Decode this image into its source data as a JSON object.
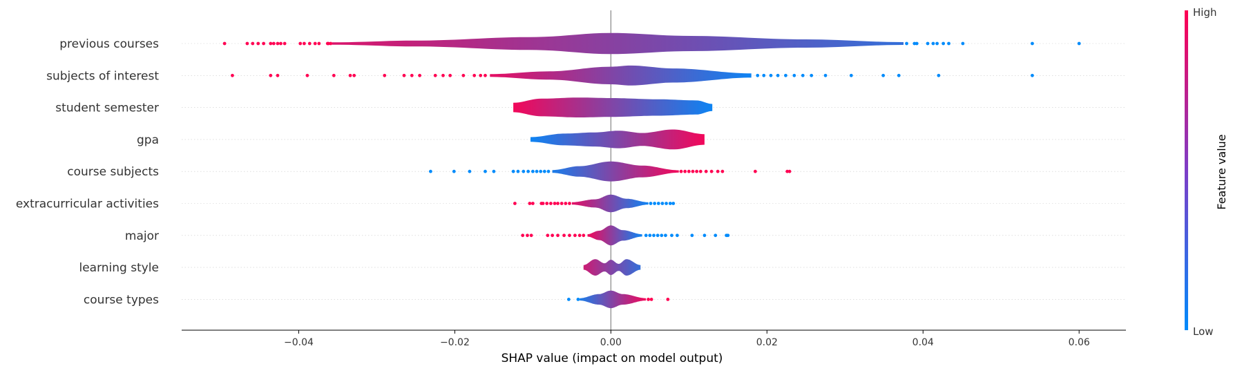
{
  "chart_data": {
    "type": "violin",
    "xlabel": "SHAP value (impact on model output)",
    "xlim": [
      -0.055,
      0.066
    ],
    "xticks": [
      -0.04,
      -0.02,
      0.0,
      0.02,
      0.04,
      0.06
    ],
    "xtick_labels": [
      "−0.04",
      "−0.02",
      "0.00",
      "0.02",
      "0.04",
      "0.06"
    ],
    "colorbar": {
      "label": "Feature value",
      "high_label": "High",
      "low_label": "Low",
      "low_color": "#008bfb",
      "high_color": "#ff0052"
    },
    "features": [
      {
        "name": "previous courses",
        "range": [
          -0.0357,
          0.0375
        ],
        "peak": 0.0,
        "color_low_side": 0.85,
        "color_high_side": 0.2,
        "thickness": [
          [
            -0.0357,
            0.1
          ],
          [
            -0.025,
            0.25
          ],
          [
            -0.01,
            0.55
          ],
          [
            0.0,
            0.9
          ],
          [
            0.01,
            0.65
          ],
          [
            0.025,
            0.35
          ],
          [
            0.0375,
            0.12
          ]
        ],
        "outliers_low": [
          -0.0495,
          -0.0466,
          -0.0459,
          -0.0452,
          -0.0445,
          -0.0436,
          -0.0432,
          -0.0427,
          -0.0423,
          -0.0418,
          -0.0398,
          -0.0393,
          -0.0386,
          -0.0379,
          -0.0374,
          -0.0363,
          -0.0362,
          -0.0359
        ],
        "outliers_high": [
          0.0379,
          0.0389,
          0.0392,
          0.0406,
          0.0413,
          0.0418,
          0.0426,
          0.0433,
          0.0451,
          0.054,
          0.06
        ]
      },
      {
        "name": "subjects of interest",
        "range": [
          -0.0155,
          0.018
        ],
        "peak": 0.0025,
        "color_low_side": 0.9,
        "color_high_side": 0.05,
        "thickness": [
          [
            -0.0155,
            0.12
          ],
          [
            -0.008,
            0.35
          ],
          [
            0.0,
            0.75
          ],
          [
            0.0025,
            0.85
          ],
          [
            0.008,
            0.6
          ],
          [
            0.018,
            0.18
          ]
        ],
        "outliers_low": [
          -0.0485,
          -0.0436,
          -0.0427,
          -0.0389,
          -0.0355,
          -0.0334,
          -0.0329,
          -0.029,
          -0.0265,
          -0.0255,
          -0.0245,
          -0.0225,
          -0.0215,
          -0.0206,
          -0.0189,
          -0.0175,
          -0.0167,
          -0.0161
        ],
        "outliers_high": [
          0.0188,
          0.0196,
          0.0205,
          0.0214,
          0.0224,
          0.0235,
          0.0246,
          0.0257,
          0.0275,
          0.0308,
          0.0349,
          0.0369,
          0.042,
          0.054
        ]
      },
      {
        "name": "student semester",
        "range": [
          -0.0125,
          0.013
        ],
        "peak": -0.002,
        "color_low_side": 0.95,
        "color_high_side": 0.05,
        "thickness": [
          [
            -0.0125,
            0.4
          ],
          [
            -0.009,
            0.75
          ],
          [
            -0.004,
            0.85
          ],
          [
            0.0,
            0.8
          ],
          [
            0.006,
            0.7
          ],
          [
            0.011,
            0.6
          ],
          [
            0.013,
            0.3
          ]
        ],
        "outliers_low": [],
        "outliers_high": []
      },
      {
        "name": "gpa",
        "range": [
          -0.0103,
          0.012
        ],
        "peak": 0.008,
        "color_low_side": 0.05,
        "color_high_side": 0.95,
        "thickness": [
          [
            -0.0103,
            0.2
          ],
          [
            -0.006,
            0.5
          ],
          [
            -0.002,
            0.6
          ],
          [
            0.001,
            0.75
          ],
          [
            0.004,
            0.55
          ],
          [
            0.008,
            0.85
          ],
          [
            0.012,
            0.45
          ]
        ],
        "outliers_low": [],
        "outliers_high": []
      },
      {
        "name": "course subjects",
        "range": [
          -0.0075,
          0.0087
        ],
        "peak": 0.0,
        "color_low_side": 0.1,
        "color_high_side": 0.95,
        "thickness": [
          [
            -0.0075,
            0.12
          ],
          [
            -0.004,
            0.45
          ],
          [
            0.0,
            0.85
          ],
          [
            0.004,
            0.5
          ],
          [
            0.0087,
            0.1
          ]
        ],
        "outliers_low": [
          -0.0231,
          -0.0201,
          -0.0181,
          -0.0161,
          -0.015,
          -0.0125,
          -0.0119,
          -0.0112,
          -0.0106,
          -0.01,
          -0.0095,
          -0.009,
          -0.0085,
          -0.008
        ],
        "outliers_high": [
          0.009,
          0.0095,
          0.01,
          0.0105,
          0.011,
          0.0115,
          0.0122,
          0.0129,
          0.0137,
          0.0143,
          0.0185,
          0.0226,
          0.0229
        ]
      },
      {
        "name": "extracurricular activities",
        "range": [
          -0.005,
          0.0048
        ],
        "peak": 0.0,
        "color_low_side": 0.9,
        "color_high_side": 0.05,
        "thickness": [
          [
            -0.005,
            0.1
          ],
          [
            -0.002,
            0.35
          ],
          [
            0.0,
            0.75
          ],
          [
            0.002,
            0.4
          ],
          [
            0.0048,
            0.1
          ]
        ],
        "outliers_low": [
          -0.0123,
          -0.0104,
          -0.01,
          -0.0089,
          -0.0087,
          -0.0082,
          -0.0077,
          -0.0072,
          -0.0068,
          -0.0063,
          -0.0058,
          -0.0053
        ],
        "outliers_high": [
          0.0051,
          0.0056,
          0.0061,
          0.0066,
          0.0071,
          0.0076,
          0.008
        ]
      },
      {
        "name": "major",
        "range": [
          -0.003,
          0.004
        ],
        "peak": 0.0,
        "color_low_side": 0.95,
        "color_high_side": 0.05,
        "thickness": [
          [
            -0.003,
            0.1
          ],
          [
            -0.0015,
            0.4
          ],
          [
            0.0,
            0.85
          ],
          [
            0.0015,
            0.45
          ],
          [
            0.004,
            0.1
          ]
        ],
        "outliers_low": [
          -0.0113,
          -0.0107,
          -0.0102,
          -0.0081,
          -0.0075,
          -0.0068,
          -0.006,
          -0.0053,
          -0.0046,
          -0.004,
          -0.0035
        ],
        "outliers_high": [
          0.0045,
          0.005,
          0.0055,
          0.006,
          0.0065,
          0.007,
          0.0078,
          0.0085,
          0.0104,
          0.012,
          0.0134,
          0.0148,
          0.015
        ]
      },
      {
        "name": "learning style",
        "range": [
          -0.0035,
          0.0038
        ],
        "peak": 0.0,
        "color_low_side": 0.8,
        "color_high_side": 0.2,
        "thickness": [
          [
            -0.0035,
            0.2
          ],
          [
            -0.002,
            0.7
          ],
          [
            -0.0008,
            0.35
          ],
          [
            0.0,
            0.65
          ],
          [
            0.001,
            0.3
          ],
          [
            0.002,
            0.7
          ],
          [
            0.0038,
            0.2
          ]
        ],
        "outliers_low": [],
        "outliers_high": []
      },
      {
        "name": "course types",
        "range": [
          -0.004,
          0.0045
        ],
        "peak": 0.0,
        "color_low_side": 0.1,
        "color_high_side": 0.95,
        "thickness": [
          [
            -0.004,
            0.1
          ],
          [
            -0.0015,
            0.45
          ],
          [
            0.0,
            0.75
          ],
          [
            0.0015,
            0.45
          ],
          [
            0.0045,
            0.1
          ]
        ],
        "outliers_low": [
          -0.0054,
          -0.0042
        ],
        "outliers_high": [
          0.0048,
          0.0052,
          0.0073
        ]
      }
    ]
  }
}
